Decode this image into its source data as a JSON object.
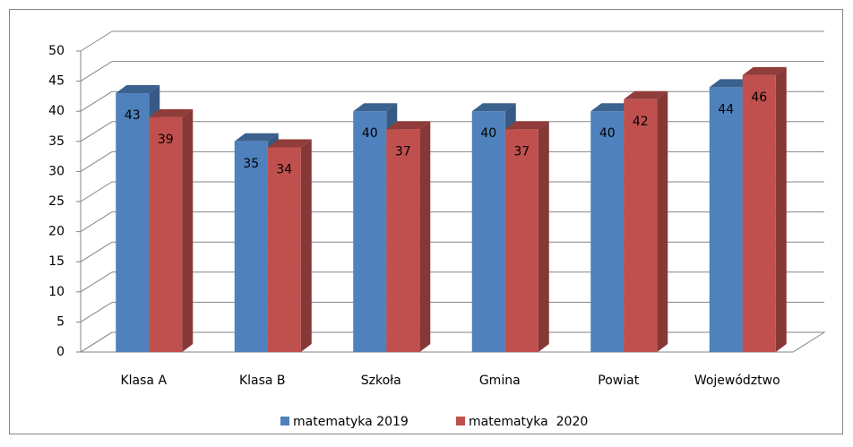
{
  "chart_data": {
    "type": "bar3d",
    "categories": [
      "Klasa A",
      "Klasa B",
      "Szkoła",
      "Gmina",
      "Powiat",
      "Województwo"
    ],
    "series": [
      {
        "name": "matematyka 2019",
        "color": "#4f81bd",
        "values": [
          43,
          35,
          40,
          40,
          40,
          44
        ]
      },
      {
        "name": "matematyka  2020",
        "color": "#c0504d",
        "values": [
          39,
          34,
          37,
          37,
          42,
          46
        ]
      }
    ],
    "ylim": [
      0,
      50
    ],
    "yticks": [
      0,
      5,
      10,
      15,
      20,
      25,
      30,
      35,
      40,
      45,
      50
    ],
    "grid": true,
    "legend": "bottom"
  }
}
